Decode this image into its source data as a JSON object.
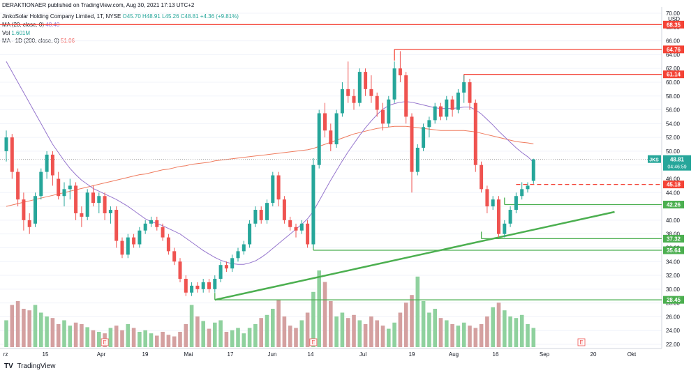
{
  "publisher_line": "DERAKTIONAER published on TradingView.com, Aug 30, 2021 17:13 UTC+2",
  "symbol_line": {
    "name": "JinkoSolar Holding Company Limited, 1T, NYSE",
    "O": "O45.70",
    "H": "H48.91",
    "L": "L45.26",
    "C": "C48.81",
    "change": "+4.36 (+9.81%)"
  },
  "indicators": [
    {
      "label": "MA (20, close, 0)",
      "value": "48.40",
      "color": "#9575cd"
    },
    {
      "label": "Vol",
      "value": "1.601M",
      "color": "#26a69a"
    },
    {
      "label": "MA - 1D (200, close, 0)",
      "value": "51.06",
      "color": "#ef5350"
    }
  ],
  "footer": {
    "logo": "TV",
    "text": "TradingView"
  },
  "chart_data": {
    "type": "candlestick",
    "currency": "USD",
    "symbol_tag": "JKS",
    "last_price": "48.81",
    "countdown": "04:46:59",
    "ylim": [
      21,
      70
    ],
    "y_ticks": [
      "22.00",
      "24.00",
      "26.00",
      "28.00",
      "30.00",
      "32.00",
      "34.00",
      "36.00",
      "38.00",
      "40.00",
      "42.00",
      "44.00",
      "46.00",
      "48.00",
      "50.00",
      "52.00",
      "54.00",
      "56.00",
      "58.00",
      "60.00",
      "62.00",
      "64.00",
      "66.00",
      "68.00",
      "70.00"
    ],
    "x_ticks": [
      "rz",
      "15",
      "Apr",
      "19",
      "Mai",
      "17",
      "Jun",
      "14",
      "Jul",
      "19",
      "Aug",
      "16",
      "Sep",
      "20",
      "Okt"
    ],
    "candles": [
      {
        "o": 50,
        "h": 53,
        "l": 48.5,
        "c": 52
      },
      {
        "o": 52,
        "h": 52.5,
        "l": 46,
        "c": 47
      },
      {
        "o": 47,
        "h": 47.5,
        "l": 42,
        "c": 43
      },
      {
        "o": 43,
        "h": 44,
        "l": 38.5,
        "c": 40
      },
      {
        "o": 40,
        "h": 41,
        "l": 38,
        "c": 39
      },
      {
        "o": 39.5,
        "h": 44,
        "l": 39,
        "c": 43.5
      },
      {
        "o": 43.5,
        "h": 47.5,
        "l": 43,
        "c": 47
      },
      {
        "o": 47,
        "h": 50,
        "l": 46,
        "c": 49.5
      },
      {
        "o": 49.5,
        "h": 50,
        "l": 45,
        "c": 46.5
      },
      {
        "o": 46,
        "h": 47,
        "l": 43,
        "c": 43.5
      },
      {
        "o": 43.5,
        "h": 45.5,
        "l": 42,
        "c": 44.5
      },
      {
        "o": 44.5,
        "h": 46,
        "l": 43,
        "c": 45
      },
      {
        "o": 45,
        "h": 45.5,
        "l": 40,
        "c": 41
      },
      {
        "o": 41,
        "h": 42,
        "l": 39,
        "c": 40.5
      },
      {
        "o": 40.5,
        "h": 44.5,
        "l": 40,
        "c": 44
      },
      {
        "o": 44,
        "h": 45,
        "l": 42,
        "c": 42.5
      },
      {
        "o": 42.5,
        "h": 44,
        "l": 41,
        "c": 43.5
      },
      {
        "o": 43.5,
        "h": 44,
        "l": 40,
        "c": 41
      },
      {
        "o": 41,
        "h": 42,
        "l": 39.5,
        "c": 41.5
      },
      {
        "o": 41.5,
        "h": 42,
        "l": 36,
        "c": 37
      },
      {
        "o": 37,
        "h": 37.5,
        "l": 34.5,
        "c": 35
      },
      {
        "o": 35,
        "h": 38,
        "l": 34.5,
        "c": 37.5
      },
      {
        "o": 37.5,
        "h": 38,
        "l": 36,
        "c": 36.5
      },
      {
        "o": 36.5,
        "h": 39,
        "l": 36,
        "c": 38.5
      },
      {
        "o": 38.5,
        "h": 40,
        "l": 38,
        "c": 39.5
      },
      {
        "o": 39.5,
        "h": 40.5,
        "l": 39,
        "c": 40
      },
      {
        "o": 40,
        "h": 40.5,
        "l": 38.5,
        "c": 39
      },
      {
        "o": 39,
        "h": 39.5,
        "l": 37,
        "c": 37.5
      },
      {
        "o": 37.5,
        "h": 38,
        "l": 35,
        "c": 35.5
      },
      {
        "o": 35.5,
        "h": 36,
        "l": 33.5,
        "c": 34
      },
      {
        "o": 34,
        "h": 34.5,
        "l": 31,
        "c": 31.5
      },
      {
        "o": 31.5,
        "h": 32,
        "l": 29,
        "c": 29.5
      },
      {
        "o": 29.5,
        "h": 31,
        "l": 29,
        "c": 30.5
      },
      {
        "o": 30.5,
        "h": 31,
        "l": 29.5,
        "c": 30
      },
      {
        "o": 30,
        "h": 31.5,
        "l": 29.5,
        "c": 31
      },
      {
        "o": 31,
        "h": 31.5,
        "l": 29.5,
        "c": 30
      },
      {
        "o": 30,
        "h": 32,
        "l": 29.5,
        "c": 31.5
      },
      {
        "o": 31.5,
        "h": 34,
        "l": 31,
        "c": 33.5
      },
      {
        "o": 33.5,
        "h": 34,
        "l": 32.5,
        "c": 33
      },
      {
        "o": 33,
        "h": 35,
        "l": 32.5,
        "c": 34.5
      },
      {
        "o": 34.5,
        "h": 36,
        "l": 34,
        "c": 35.5
      },
      {
        "o": 35.5,
        "h": 37,
        "l": 35,
        "c": 36.5
      },
      {
        "o": 36.5,
        "h": 40,
        "l": 36,
        "c": 39.5
      },
      {
        "o": 39.5,
        "h": 42,
        "l": 39,
        "c": 41.5
      },
      {
        "o": 41.5,
        "h": 42,
        "l": 39.5,
        "c": 40
      },
      {
        "o": 40,
        "h": 43,
        "l": 39.5,
        "c": 42.5
      },
      {
        "o": 42.5,
        "h": 47,
        "l": 42,
        "c": 46.5
      },
      {
        "o": 46.5,
        "h": 47,
        "l": 42,
        "c": 43
      },
      {
        "o": 43,
        "h": 43.5,
        "l": 39.5,
        "c": 40
      },
      {
        "o": 40,
        "h": 40.5,
        "l": 38.5,
        "c": 39
      },
      {
        "o": 39,
        "h": 39.5,
        "l": 37.5,
        "c": 38.5
      },
      {
        "o": 38.5,
        "h": 40,
        "l": 38,
        "c": 39.5
      },
      {
        "o": 39.5,
        "h": 40,
        "l": 36,
        "c": 36.5
      },
      {
        "o": 36.5,
        "h": 49,
        "l": 36,
        "c": 48
      },
      {
        "o": 48,
        "h": 56,
        "l": 47.5,
        "c": 55.5
      },
      {
        "o": 55.5,
        "h": 57,
        "l": 52,
        "c": 53
      },
      {
        "o": 53,
        "h": 54,
        "l": 50,
        "c": 51
      },
      {
        "o": 51,
        "h": 56,
        "l": 50.5,
        "c": 55.5
      },
      {
        "o": 55.5,
        "h": 60,
        "l": 55,
        "c": 59
      },
      {
        "o": 59,
        "h": 63,
        "l": 57,
        "c": 58
      },
      {
        "o": 58,
        "h": 59,
        "l": 56,
        "c": 57
      },
      {
        "o": 57,
        "h": 62,
        "l": 56.5,
        "c": 61.5
      },
      {
        "o": 61.5,
        "h": 62,
        "l": 58,
        "c": 59
      },
      {
        "o": 59,
        "h": 61,
        "l": 57,
        "c": 58
      },
      {
        "o": 58,
        "h": 58.5,
        "l": 55,
        "c": 56
      },
      {
        "o": 56,
        "h": 57,
        "l": 53,
        "c": 54
      },
      {
        "o": 54,
        "h": 58,
        "l": 53.5,
        "c": 57.5
      },
      {
        "o": 57.5,
        "h": 63,
        "l": 57,
        "c": 62
      },
      {
        "o": 62,
        "h": 64.5,
        "l": 60,
        "c": 61
      },
      {
        "o": 61,
        "h": 61.5,
        "l": 54,
        "c": 55
      },
      {
        "o": 55,
        "h": 55.5,
        "l": 44,
        "c": 47
      },
      {
        "o": 47,
        "h": 51,
        "l": 46.5,
        "c": 50.5
      },
      {
        "o": 50.5,
        "h": 54,
        "l": 50,
        "c": 53.5
      },
      {
        "o": 53.5,
        "h": 55,
        "l": 52,
        "c": 54.5
      },
      {
        "o": 54.5,
        "h": 57,
        "l": 54,
        "c": 56.5
      },
      {
        "o": 56.5,
        "h": 57,
        "l": 54.5,
        "c": 55
      },
      {
        "o": 55,
        "h": 58,
        "l": 54.5,
        "c": 57.5
      },
      {
        "o": 57.5,
        "h": 58,
        "l": 55,
        "c": 56
      },
      {
        "o": 56,
        "h": 59,
        "l": 55.5,
        "c": 58.5
      },
      {
        "o": 58.5,
        "h": 61,
        "l": 57,
        "c": 60
      },
      {
        "o": 60,
        "h": 60.5,
        "l": 56,
        "c": 57
      },
      {
        "o": 57,
        "h": 57.5,
        "l": 47,
        "c": 48
      },
      {
        "o": 48,
        "h": 48.5,
        "l": 44,
        "c": 44.5
      },
      {
        "o": 44.5,
        "h": 45,
        "l": 41,
        "c": 42
      },
      {
        "o": 42,
        "h": 43.5,
        "l": 41.5,
        "c": 43
      },
      {
        "o": 43,
        "h": 43.5,
        "l": 37.5,
        "c": 38
      },
      {
        "o": 38,
        "h": 40,
        "l": 37.5,
        "c": 39.5
      },
      {
        "o": 39.5,
        "h": 42,
        "l": 39,
        "c": 41.5
      },
      {
        "o": 41.5,
        "h": 44,
        "l": 41,
        "c": 43.5
      },
      {
        "o": 43.5,
        "h": 45.5,
        "l": 43,
        "c": 44.5
      },
      {
        "o": 44.5,
        "h": 45.5,
        "l": 44,
        "c": 45
      },
      {
        "o": 45.7,
        "h": 48.91,
        "l": 45.26,
        "c": 48.81
      }
    ],
    "volume": [
      35,
      55,
      60,
      50,
      48,
      55,
      45,
      40,
      38,
      30,
      35,
      28,
      32,
      30,
      26,
      22,
      20,
      18,
      25,
      28,
      22,
      30,
      25,
      20,
      22,
      18,
      15,
      20,
      16,
      14,
      20,
      30,
      55,
      40,
      34,
      24,
      32,
      35,
      20,
      22,
      25,
      18,
      25,
      30,
      38,
      42,
      50,
      62,
      40,
      28,
      25,
      35,
      45,
      72,
      100,
      85,
      60,
      40,
      45,
      38,
      42,
      35,
      30,
      40,
      35,
      28,
      24,
      32,
      45,
      58,
      68,
      92,
      60,
      45,
      50,
      38,
      35,
      30,
      28,
      32,
      28,
      25,
      30,
      40,
      52,
      58,
      48,
      40,
      38,
      42,
      30,
      25
    ],
    "volume_pattern_note": "",
    "ma20": [
      63,
      61.5,
      60,
      58.5,
      57,
      55.5,
      54,
      52.5,
      51,
      49.8,
      48.6,
      47.5,
      46.6,
      45.8,
      45.2,
      44.6,
      44.2,
      43.8,
      43.4,
      43,
      42.5,
      42,
      41.4,
      40.8,
      40.2,
      39.8,
      39.5,
      39.2,
      38.8,
      38.4,
      38,
      37.4,
      36.8,
      36.2,
      35.6,
      35.1,
      34.6,
      34.2,
      33.9,
      33.7,
      33.6,
      33.6,
      33.8,
      34.1,
      34.6,
      35.2,
      35.9,
      36.6,
      37.3,
      38,
      38.7,
      39.4,
      40.2,
      41.3,
      42.8,
      44.3,
      45.8,
      47.2,
      48.6,
      49.9,
      51.1,
      52.3,
      53.4,
      54.4,
      55.3,
      56.1,
      56.6,
      56.9,
      57.1,
      57.2,
      57.1,
      56.9,
      56.7,
      56.5,
      56.3,
      56.2,
      56.2,
      56.2,
      56.3,
      56.4,
      56.4,
      56,
      55.4,
      54.6,
      53.8,
      52.9,
      52.1,
      51.3,
      50.5,
      49.8,
      49.2,
      48.4
    ],
    "ma200": [
      42,
      42.2,
      42.4,
      42.6,
      42.8,
      43,
      43.2,
      43.4,
      43.6,
      43.8,
      44,
      44.2,
      44.4,
      44.6,
      44.8,
      45,
      45.2,
      45.4,
      45.6,
      45.8,
      46,
      46.2,
      46.4,
      46.6,
      46.7,
      46.9,
      47.1,
      47.3,
      47.4,
      47.6,
      47.8,
      47.9,
      48.1,
      48.2,
      48.3,
      48.4,
      48.6,
      48.7,
      48.8,
      48.9,
      49,
      49.1,
      49.2,
      49.3,
      49.4,
      49.5,
      49.6,
      49.7,
      49.8,
      49.9,
      50,
      50.1,
      50.2,
      50.4,
      50.7,
      51,
      51.3,
      51.6,
      51.9,
      52.2,
      52.5,
      52.7,
      52.9,
      53.1,
      53.3,
      53.4,
      53.5,
      53.6,
      53.6,
      53.6,
      53.5,
      53.4,
      53.3,
      53.2,
      53.1,
      53,
      53,
      53,
      53,
      53,
      52.9,
      52.8,
      52.6,
      52.4,
      52.2,
      52,
      51.8,
      51.6,
      51.4,
      51.3,
      51.2,
      51.06
    ],
    "levels": [
      {
        "value": "68.35",
        "color": "#f44336",
        "from": 0,
        "kind": "resistance"
      },
      {
        "value": "64.76",
        "color": "#f44336",
        "from": 67,
        "kind": "resistance"
      },
      {
        "value": "61.14",
        "color": "#f44336",
        "from": 79,
        "kind": "resistance"
      },
      {
        "value": "45.18",
        "color": "#f44336",
        "from": 88,
        "kind": "dashed"
      },
      {
        "value": "42.26",
        "color": "#4caf50",
        "from": 86,
        "kind": "support"
      },
      {
        "value": "37.32",
        "color": "#4caf50",
        "from": 82,
        "kind": "support"
      },
      {
        "value": "35.64",
        "color": "#4caf50",
        "from": 53,
        "kind": "support"
      },
      {
        "value": "28.45",
        "color": "#4caf50",
        "from": 36,
        "kind": "support"
      }
    ],
    "trendline": {
      "from": {
        "i": 36,
        "y": 28.45
      },
      "to": {
        "i": 105,
        "y": 41.2
      }
    },
    "earnings_markers": [
      17,
      53,
      94
    ],
    "colors": {
      "up": "#26a69a",
      "down": "#ef5350",
      "vol_up": "#8fd19e",
      "vol_down": "#d4a0a0",
      "ma20": "#9575cd",
      "ma200": "#ef7b5e",
      "grid": "#f0f3fa"
    }
  }
}
